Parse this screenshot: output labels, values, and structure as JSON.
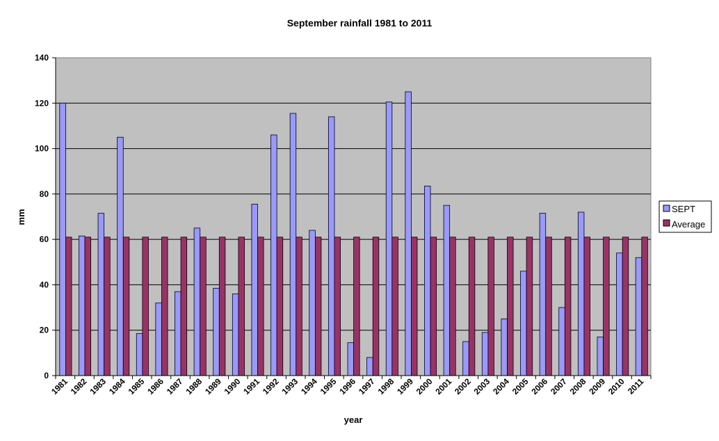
{
  "chart_data": {
    "type": "bar",
    "title": "September rainfall 1981 to 2011",
    "xlabel": "year",
    "ylabel": "mm",
    "ylim": [
      0,
      140
    ],
    "yticks": [
      0,
      20,
      40,
      60,
      80,
      100,
      120,
      140
    ],
    "categories": [
      "1981",
      "1982",
      "1983",
      "1984",
      "1985",
      "1986",
      "1987",
      "1988",
      "1989",
      "1990",
      "1991",
      "1992",
      "1993",
      "1994",
      "1995",
      "1996",
      "1997",
      "1998",
      "1999",
      "2000",
      "2001",
      "2002",
      "2003",
      "2004",
      "2005",
      "2006",
      "2007",
      "2008",
      "2009",
      "2010",
      "2011"
    ],
    "series": [
      {
        "name": "SEPT",
        "color": "#9999ff",
        "values": [
          120,
          61.5,
          71.5,
          105,
          18.5,
          32,
          37,
          65,
          38.5,
          36,
          75.5,
          106,
          115.5,
          64,
          114,
          14.5,
          8,
          120.5,
          125,
          83.5,
          75,
          15,
          19,
          25,
          46,
          71.5,
          30,
          72,
          17,
          54,
          52
        ]
      },
      {
        "name": "Average",
        "color": "#993366",
        "values": [
          61,
          61,
          61,
          61,
          61,
          61,
          61,
          61,
          61,
          61,
          61,
          61,
          61,
          61,
          61,
          61,
          61,
          61,
          61,
          61,
          61,
          61,
          61,
          61,
          61,
          61,
          61,
          61,
          61,
          61,
          61
        ]
      }
    ],
    "plot_background": "#c0c0c0",
    "grid": true,
    "legend_position": "right"
  }
}
